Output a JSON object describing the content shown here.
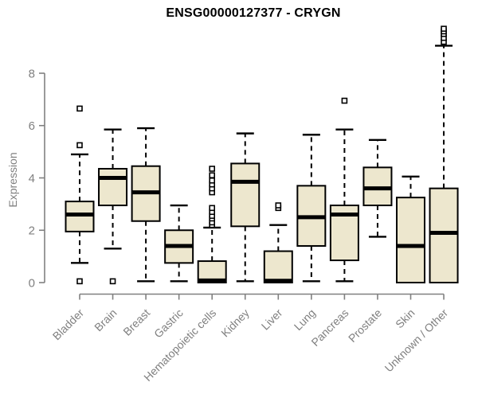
{
  "title": "ENSG00000127377 - CRYGN",
  "ylabel": "Expression",
  "chart_data": {
    "type": "boxplot",
    "title": "ENSG00000127377 - CRYGN",
    "xlabel": "",
    "ylabel": "Expression",
    "yticks": [
      0,
      2,
      4,
      6,
      8
    ],
    "ylim": [
      -0.45,
      9.9
    ],
    "grid": false,
    "legend": "none",
    "categories": [
      "Bladder",
      "Brain",
      "Breast",
      "Gastric",
      "Hematopoietic cells",
      "Kidney",
      "Liver",
      "Lung",
      "Pancreas",
      "Prostate",
      "Skin",
      "Unknown / Other"
    ],
    "boxes": [
      {
        "category": "Bladder",
        "whisker_low": 0.75,
        "q1": 1.95,
        "median": 2.6,
        "q3": 3.1,
        "whisker_high": 4.9,
        "outliers": [
          5.25,
          6.65,
          0.05
        ]
      },
      {
        "category": "Brain",
        "whisker_low": 1.3,
        "q1": 2.95,
        "median": 4.0,
        "q3": 4.35,
        "whisker_high": 5.85,
        "outliers": [
          0.05
        ]
      },
      {
        "category": "Breast",
        "whisker_low": 0.05,
        "q1": 2.35,
        "median": 3.45,
        "q3": 4.45,
        "whisker_high": 5.9,
        "outliers": []
      },
      {
        "category": "Gastric",
        "whisker_low": 0.05,
        "q1": 0.75,
        "median": 1.4,
        "q3": 2.0,
        "whisker_high": 2.95,
        "outliers": []
      },
      {
        "category": "Hematopoietic cells",
        "whisker_low": 0.0,
        "q1": 0.0,
        "median": 0.08,
        "q3": 0.82,
        "whisker_high": 2.1,
        "outliers": [
          2.2,
          2.3,
          2.45,
          2.55,
          2.7,
          2.85,
          3.45,
          3.6,
          3.75,
          3.9,
          4.1,
          4.35
        ]
      },
      {
        "category": "Kidney",
        "whisker_low": 0.05,
        "q1": 2.15,
        "median": 3.85,
        "q3": 4.55,
        "whisker_high": 5.7,
        "outliers": []
      },
      {
        "category": "Liver",
        "whisker_low": 0.0,
        "q1": 0.0,
        "median": 0.07,
        "q3": 1.2,
        "whisker_high": 2.2,
        "outliers": [
          2.85,
          2.95
        ]
      },
      {
        "category": "Lung",
        "whisker_low": 0.05,
        "q1": 1.4,
        "median": 2.5,
        "q3": 3.7,
        "whisker_high": 5.65,
        "outliers": []
      },
      {
        "category": "Pancreas",
        "whisker_low": 0.05,
        "q1": 0.85,
        "median": 2.6,
        "q3": 2.95,
        "whisker_high": 5.85,
        "outliers": [
          6.95
        ]
      },
      {
        "category": "Prostate",
        "whisker_low": 1.75,
        "q1": 2.95,
        "median": 3.6,
        "q3": 4.4,
        "whisker_high": 5.45,
        "outliers": []
      },
      {
        "category": "Skin",
        "whisker_low": 0.0,
        "q1": 0.0,
        "median": 1.4,
        "q3": 3.25,
        "whisker_high": 4.05,
        "outliers": []
      },
      {
        "category": "Unknown / Other",
        "whisker_low": 0.0,
        "q1": 0.0,
        "median": 1.9,
        "q3": 3.6,
        "whisker_high": 9.05,
        "outliers": [
          9.2,
          9.35,
          9.5,
          9.6,
          9.7
        ]
      }
    ],
    "colors": {
      "box_fill": "#EDE7CE",
      "box_border": "#000000",
      "median": "#000000",
      "whisker": "#000000",
      "outlier_stroke": "#000000",
      "outlier_fill": "#ffffff",
      "axis": "#808080",
      "tick_text": "#808080",
      "title_text": "#000000",
      "background": "#ffffff"
    }
  }
}
